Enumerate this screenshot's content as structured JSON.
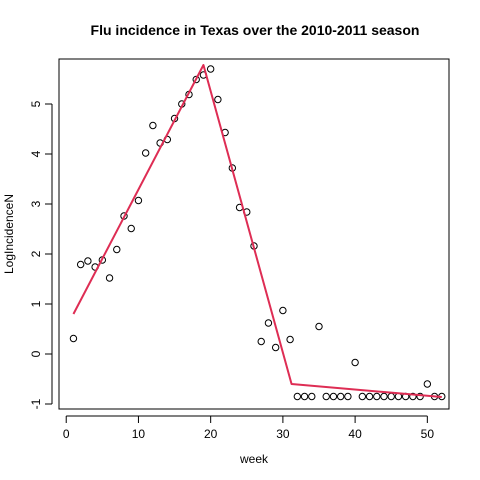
{
  "chart_data": {
    "type": "scatter",
    "title": "Flu incidence in Texas over the 2010-2011 season",
    "xlabel": "week",
    "ylabel": "LogIncidenceN",
    "xlim": [
      -1,
      53
    ],
    "ylim": [
      -1.1,
      5.9
    ],
    "xticks": [
      0,
      10,
      20,
      30,
      40,
      50
    ],
    "yticks": [
      -1,
      0,
      1,
      2,
      3,
      4,
      5
    ],
    "grid": false,
    "series": [
      {
        "kind": "points",
        "marker": "open-circle",
        "color": "#000000",
        "x": [
          1,
          2,
          3,
          4,
          5,
          6,
          7,
          8,
          9,
          10,
          11,
          12,
          13,
          14,
          15,
          16,
          17,
          18,
          19,
          20,
          21,
          22,
          23,
          24,
          25,
          26,
          27,
          28,
          29,
          30,
          31,
          32,
          33,
          34,
          35,
          36,
          37,
          38,
          39,
          40,
          41,
          42,
          43,
          44,
          45,
          46,
          47,
          48,
          49,
          50,
          51,
          52
        ],
        "y": [
          0.31,
          1.79,
          1.86,
          1.74,
          1.88,
          1.52,
          2.09,
          2.76,
          2.51,
          3.07,
          4.02,
          4.57,
          4.22,
          4.29,
          4.71,
          5.0,
          5.19,
          5.49,
          5.58,
          5.7,
          5.09,
          4.43,
          3.72,
          2.93,
          2.84,
          2.16,
          0.25,
          0.62,
          0.13,
          0.87,
          0.29,
          -0.85,
          -0.85,
          -0.85,
          0.55,
          -0.85,
          -0.85,
          -0.85,
          -0.85,
          -0.17,
          -0.85,
          -0.85,
          -0.85,
          -0.85,
          -0.85,
          -0.85,
          -0.85,
          -0.85,
          -0.85,
          -0.6,
          -0.85,
          -0.85
        ]
      },
      {
        "kind": "line",
        "color": "#de2d54",
        "x": [
          1,
          19,
          31.2,
          52
        ],
        "y": [
          0.8,
          5.78,
          -0.6,
          -0.86
        ]
      }
    ]
  }
}
